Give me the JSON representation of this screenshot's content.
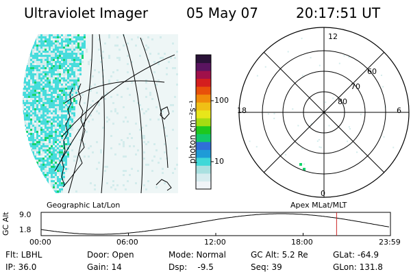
{
  "header": {
    "instrument": "Ultraviolet Imager",
    "date": "05 May 07",
    "time": "20:17:51 UT"
  },
  "colorbar": {
    "unit_label": "photon cm⁻²s⁻¹",
    "ticks": [
      "100",
      "10"
    ],
    "colors": [
      "#f0f4f8",
      "#d6ecef",
      "#a9e0e0",
      "#3fd8d8",
      "#1e9bd7",
      "#2f6fd8",
      "#12c86a",
      "#1ec81e",
      "#a6dc12",
      "#e8e61a",
      "#f0c015",
      "#f08c0a",
      "#e8500a",
      "#d41e1e",
      "#a0104a",
      "#5a1460",
      "#2a1238"
    ]
  },
  "polar_plot": {
    "mlt_labels": {
      "top": "12",
      "left": "18",
      "right": "6",
      "bottom": "0"
    },
    "lat_labels": [
      "60",
      "70",
      "80"
    ],
    "caption": "Apex MLat/MLT"
  },
  "geo_plot": {
    "caption": "Geographic Lat/Lon"
  },
  "altitude_plot": {
    "ylabel": "GC Alt",
    "ytick_top": "9.0",
    "ytick_bottom": "1.8",
    "xticks": [
      "00:00",
      "06:00",
      "12:00",
      "18:00",
      "23:59"
    ],
    "curve": {
      "min_hour": 4.0,
      "max_hour": 16.5,
      "min_re": 1.8,
      "max_re": 9.0
    },
    "marker_hour": 20.3
  },
  "footer": {
    "flt": "Flt: LBHL",
    "ip": "IP: 36.0",
    "door": "Door: Open",
    "gain": "Gain: 14",
    "mode": "Mode: Normal",
    "dsp": "Dsp:    -9.5",
    "gc_alt": "GC Alt: 5.2 Re",
    "seq": "Seq: 39",
    "glat": "GLat: -64.9",
    "glon": "GLon: 131.8"
  },
  "colors": {
    "speck_light": "#d3ecec",
    "speck_cyan": "#47dcdc",
    "speck_green": "#16d46c",
    "marker": "#cc2222"
  }
}
